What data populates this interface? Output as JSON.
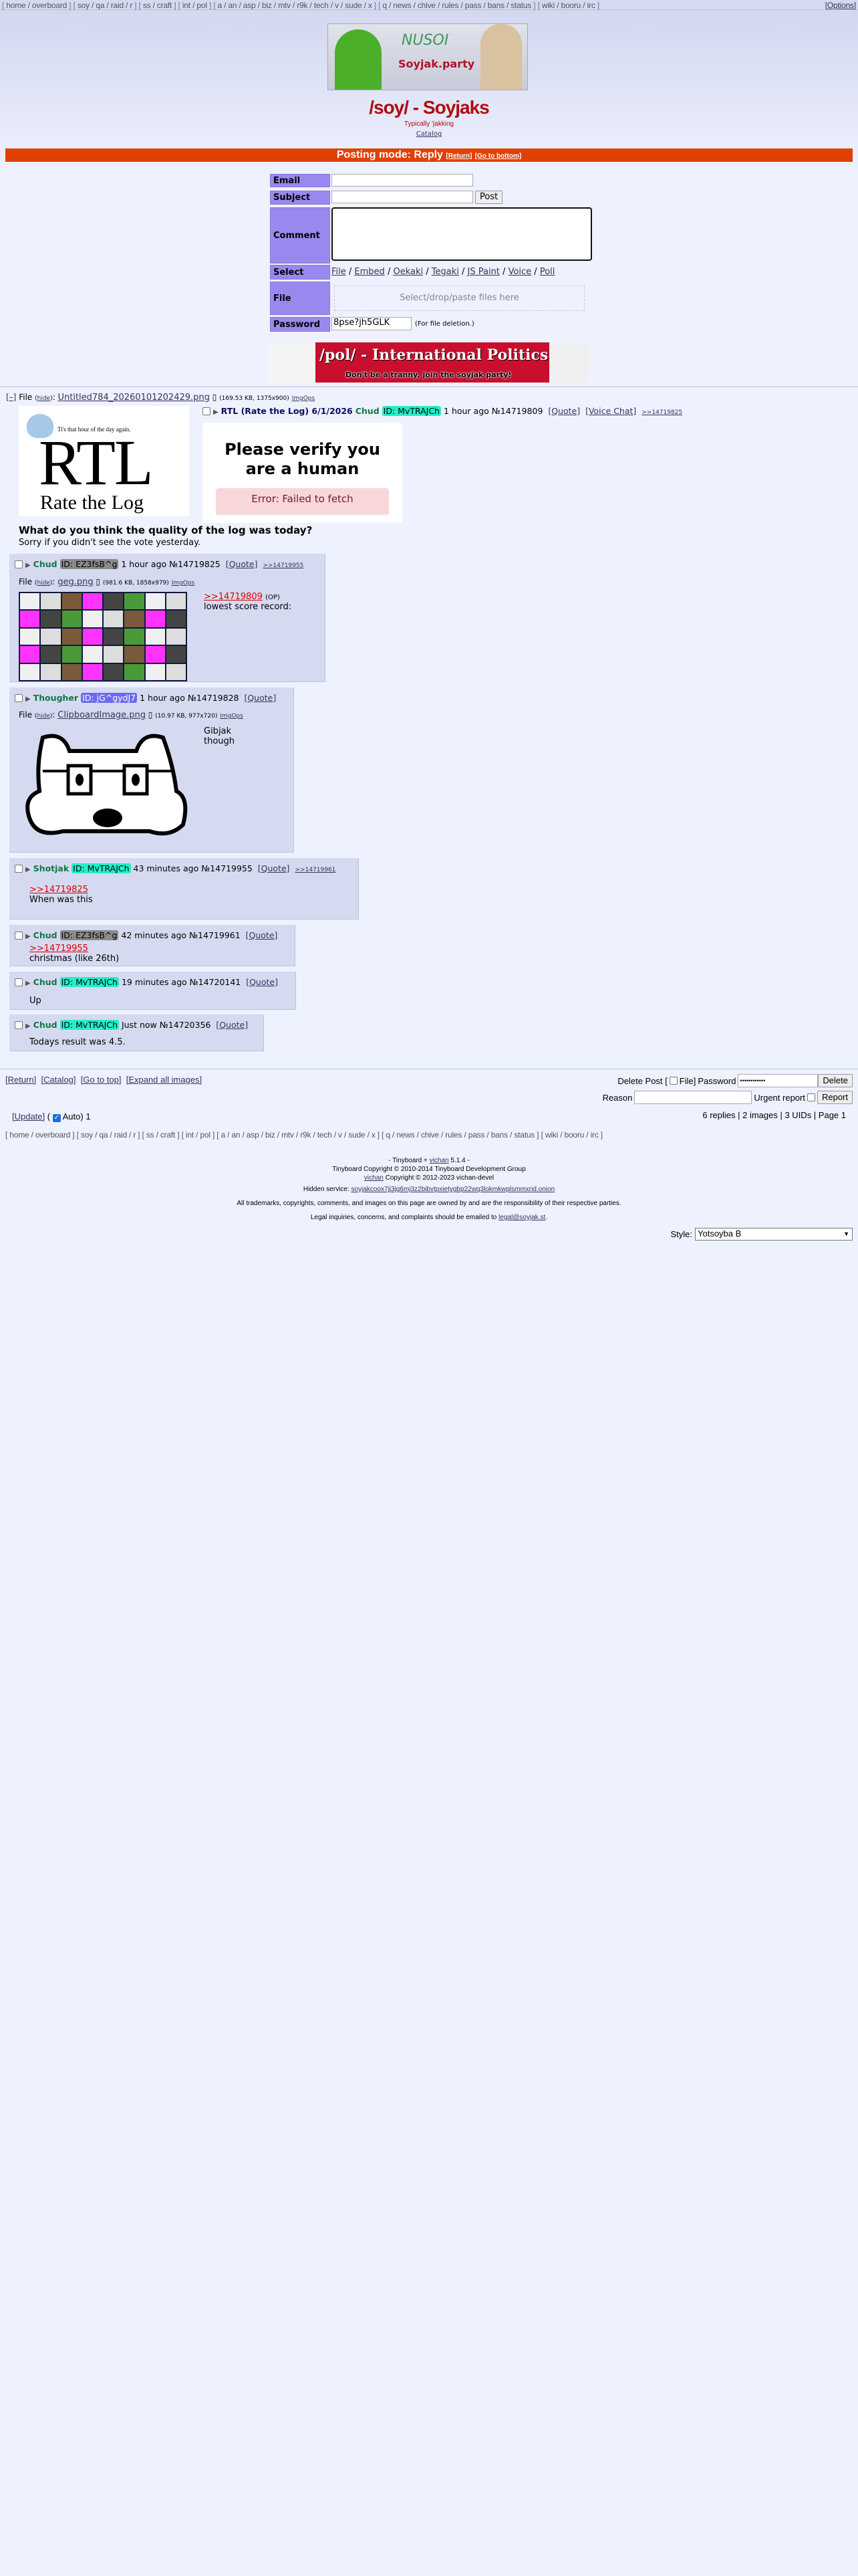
{
  "nav": {
    "groups": [
      [
        "home",
        "overboard"
      ],
      [
        "soy",
        "qa",
        "raid",
        "r"
      ],
      [
        "ss",
        "craft"
      ],
      [
        "int",
        "pol"
      ],
      [
        "a",
        "an",
        "asp",
        "biz",
        "mtv",
        "r9k",
        "tech",
        "v",
        "sude",
        "x"
      ],
      [
        "q",
        "news",
        "chive",
        "rules",
        "pass",
        "bans",
        "status"
      ],
      [
        "wiki",
        "booru",
        "irc"
      ]
    ],
    "options": "[Options]"
  },
  "banner": {
    "text1": "NUSOI",
    "text2": "Soyjak.party"
  },
  "board": {
    "title": "/soy/ - Soyjaks",
    "subtitle": "Typically 'jakking",
    "catalog": "Catalog"
  },
  "posting_mode": {
    "label": "Posting mode: Reply",
    "return": "[Return]",
    "bottom": "[Go to bottom]"
  },
  "form": {
    "email_label": "Email",
    "subject_label": "Subject",
    "post_button": "Post",
    "comment_label": "Comment",
    "select_label": "Select",
    "select_options": [
      "File",
      "Embed",
      "Oekaki",
      "Tegaki",
      "JS Paint",
      "Voice",
      "Poll"
    ],
    "file_label": "File",
    "file_drop": "Select/drop/paste files here",
    "password_label": "Password",
    "password_value": "8pse?jh5GLK",
    "password_note": "(For file deletion.)"
  },
  "pol_banner": {
    "title": "/pol/ - International Politics",
    "tagline": "Don't be a tranny, join the soyjak party!"
  },
  "op": {
    "collapse": "[–]",
    "file_label": "File",
    "hide": "hide",
    "filename": "Untitled784_20260101202429.png",
    "meta": "(169.53 KB, 1375x900)",
    "imgops": "ImgOps",
    "img_caption": "Ti's that hour of the day again.",
    "img_big": "RTL",
    "img_sub": "Rate the Log",
    "subject": "RTL (Rate the Log) 6/1/2026",
    "name": "Chud",
    "id": "ID: MvTRAJCh",
    "time": "1 hour ago",
    "no": "№14719809",
    "quote": "[Quote]",
    "voice": "[Voice Chat]",
    "backlink": ">>14719825",
    "captcha_title": "Please verify you are a human",
    "captcha_error": "Error: Failed to fetch",
    "body_bold": "What do you think the quality of the log was today?",
    "body": "Sorry if you didn't see the vote yesterday."
  },
  "replies": [
    {
      "name": "Chud",
      "id": "ID: EZ3fsB^g",
      "id_color": "#8a8a8a",
      "time": "1 hour ago",
      "no": "№14719825",
      "quote": "[Quote]",
      "backlink": ">>14719955",
      "file": {
        "label": "File",
        "hide": "hide",
        "filename": "geg.png",
        "meta": "(981.6 KB, 1858x979)",
        "imgops": "ImgOps"
      },
      "quotelink": ">>14719809",
      "op_mark": "(OP)",
      "text": "lowest score record:"
    },
    {
      "name": "Thougher",
      "id": "ID: jG^gydJ7",
      "id_color": "#6b6bef",
      "time": "1 hour ago",
      "no": "№14719828",
      "quote": "[Quote]",
      "file": {
        "label": "File",
        "hide": "hide",
        "filename": "ClipboardImage.png",
        "meta": "(10.97 KB, 977x720)",
        "imgops": "ImgOps"
      },
      "text": "Gibjak though"
    },
    {
      "name": "Shotjak",
      "id": "ID: MvTRAJCh",
      "id_color": "#22f0c8",
      "time": "43 minutes ago",
      "no": "№14719955",
      "quote": "[Quote]",
      "backlink": ">>14719961",
      "quotelink": ">>14719825",
      "text": "When was this"
    },
    {
      "name": "Chud",
      "id": "ID: EZ3fsB^g",
      "id_color": "#8a8a8a",
      "time": "42 minutes ago",
      "no": "№14719961",
      "quote": "[Quote]",
      "quotelink": ">>14719955",
      "text": "christmas (like 26th)"
    },
    {
      "name": "Chud",
      "id": "ID: MvTRAJCh",
      "id_color": "#22f0c8",
      "time": "19 minutes ago",
      "no": "№14720141",
      "quote": "[Quote]",
      "text": "Up"
    },
    {
      "name": "Chud",
      "id": "ID: MvTRAJCh",
      "id_color": "#22f0c8",
      "time": "Just now",
      "no": "№14720356",
      "quote": "[Quote]",
      "text": "Todays result was 4.5."
    }
  ],
  "bottom": {
    "links": [
      "[Return]",
      "[Catalog]",
      "[Go to top]",
      "[Expand all images]"
    ],
    "delete_post": "Delete Post [",
    "file": "File]",
    "password": "Password",
    "password_value": "••••••••••••",
    "delete": "Delete",
    "reason": "Reason",
    "urgent": "Urgent report",
    "report": "Report",
    "update": "[Update]",
    "auto": "Auto)",
    "count": "1",
    "stats": "6 replies | 2 images | 3 UIDs | Page 1"
  },
  "footer": {
    "line1_pre": "- Tinyboard +",
    "vichan": "vichan",
    "line1_post": "5.1.4 -",
    "line2": "Tinyboard Copyright © 2010-2014 Tinyboard Development Group",
    "line3_post": "Copyright © 2012-2023 vichan-devel",
    "hidden_label": "Hidden service:",
    "onion": "soyjakcoox7jj3jg6mj3z2bibvtpxietygbp22wq3lokmkwplsmmxrid.onion",
    "trademarks": "All trademarks, copyrights, comments, and images on this page are owned by and are the responsibility of their respective parties.",
    "legal_pre": "Legal inquiries, concerns, and complaints should be emailed to",
    "legal_email": "legal@soyjak.st",
    "legal_post": ".",
    "style_label": "Style:",
    "style_value": "Yotsoyba B"
  }
}
